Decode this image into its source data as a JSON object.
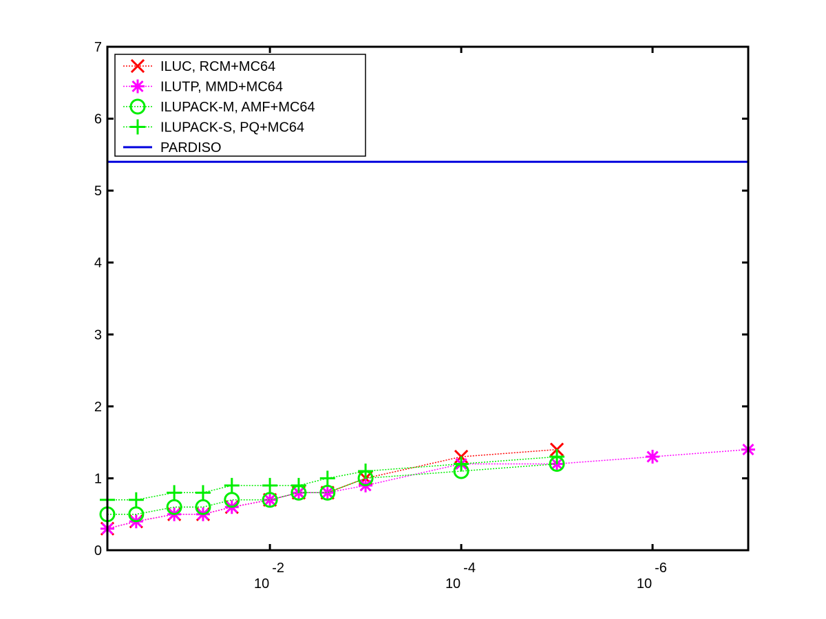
{
  "chart_data": {
    "type": "line",
    "title": "",
    "xlabel": "",
    "ylabel": "",
    "xscale": "log",
    "xdirection": "decreasing",
    "xlim": [
      0.5,
      1e-07
    ],
    "ylim": [
      0,
      7
    ],
    "grid": false,
    "legend_position": "top-left",
    "x_ticks": [
      {
        "value": 0.01,
        "base": "10",
        "exponent": "-2"
      },
      {
        "value": 0.0001,
        "base": "10",
        "exponent": "-4"
      },
      {
        "value": 1e-06,
        "base": "10",
        "exponent": "-6"
      }
    ],
    "y_ticks": [
      {
        "value": 0,
        "label": "0"
      },
      {
        "value": 1,
        "label": "1"
      },
      {
        "value": 2,
        "label": "2"
      },
      {
        "value": 3,
        "label": "3"
      },
      {
        "value": 4,
        "label": "4"
      },
      {
        "value": 5,
        "label": "5"
      },
      {
        "value": 6,
        "label": "6"
      },
      {
        "value": 7,
        "label": "7"
      }
    ],
    "series": [
      {
        "name": "ILUC, RCM+MC64",
        "color": "#ff0000",
        "marker": "x",
        "line": "dotted",
        "x": [
          0.5,
          0.25,
          0.1,
          0.05,
          0.025,
          0.01,
          0.005,
          0.0025,
          0.001,
          0.0001,
          1e-05
        ],
        "y": [
          0.3,
          0.4,
          0.5,
          0.5,
          0.6,
          0.7,
          0.8,
          0.8,
          1.0,
          1.3,
          1.4
        ]
      },
      {
        "name": "ILUTP, MMD+MC64",
        "color": "#ff00ff",
        "marker": "asterisk",
        "line": "dotted",
        "x": [
          0.5,
          0.25,
          0.1,
          0.05,
          0.025,
          0.01,
          0.005,
          0.0025,
          0.001,
          0.0001,
          1e-05,
          1e-06,
          1e-07
        ],
        "y": [
          0.3,
          0.4,
          0.5,
          0.5,
          0.6,
          0.7,
          0.8,
          0.8,
          0.9,
          1.2,
          1.2,
          1.3,
          1.4
        ]
      },
      {
        "name": "ILUPACK-M, AMF+MC64",
        "color": "#00ee00",
        "marker": "circle",
        "line": "dotted",
        "x": [
          0.5,
          0.25,
          0.1,
          0.05,
          0.025,
          0.01,
          0.005,
          0.0025,
          0.001,
          0.0001,
          1e-05
        ],
        "y": [
          0.5,
          0.5,
          0.6,
          0.6,
          0.7,
          0.7,
          0.8,
          0.8,
          1.0,
          1.1,
          1.2
        ]
      },
      {
        "name": "ILUPACK-S, PQ+MC64",
        "color": "#00ee00",
        "marker": "plus",
        "line": "dotted",
        "x": [
          0.5,
          0.25,
          0.1,
          0.05,
          0.025,
          0.01,
          0.005,
          0.0025,
          0.001,
          0.0001,
          1e-05
        ],
        "y": [
          0.7,
          0.7,
          0.8,
          0.8,
          0.9,
          0.9,
          0.9,
          1.0,
          1.1,
          1.2,
          1.3
        ]
      },
      {
        "name": "PARDISO",
        "color": "#0000dd",
        "marker": "none",
        "line": "solid",
        "x": [
          0.5,
          1e-07
        ],
        "y": [
          5.4,
          5.4
        ]
      }
    ]
  }
}
